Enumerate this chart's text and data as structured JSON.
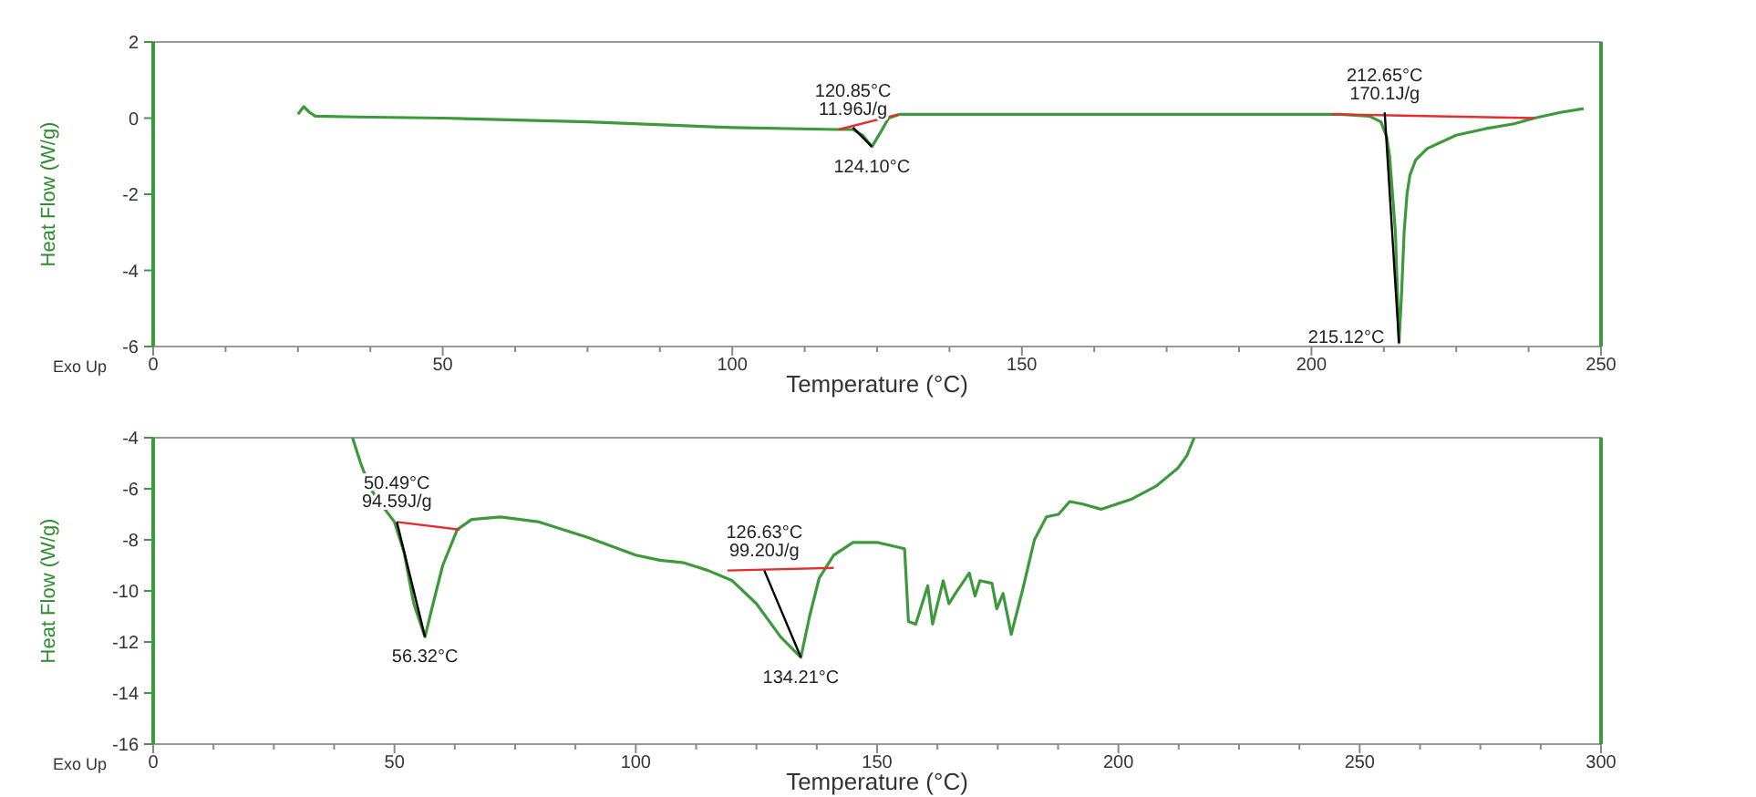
{
  "chart_data": [
    {
      "type": "line",
      "xlabel": "Temperature (°C)",
      "ylabel": "Heat Flow (W/g)",
      "xlim": [
        0,
        250
      ],
      "ylim": [
        -6,
        2
      ],
      "xticks": [
        0,
        {
          "value": 12.5,
          "label": null
        },
        {
          "value": 25,
          "label": null
        },
        {
          "value": 37.5,
          "label": null
        },
        50,
        {
          "value": 62.5,
          "label": null
        },
        {
          "value": 75,
          "label": null
        },
        {
          "value": 87.5,
          "label": null
        },
        100,
        {
          "value": 112.5,
          "label": null
        },
        {
          "value": 125,
          "label": null
        },
        {
          "value": 137.5,
          "label": null
        },
        150,
        {
          "value": 162.5,
          "label": null
        },
        {
          "value": 175,
          "label": null
        },
        {
          "value": 187.5,
          "label": null
        },
        200,
        {
          "value": 212.5,
          "label": null
        },
        {
          "value": 225,
          "label": null
        },
        {
          "value": 237.5,
          "label": null
        },
        250
      ],
      "yticks": [
        -6,
        -4,
        -2,
        0,
        2
      ],
      "grid": false,
      "marker": "none",
      "line_style": "solid",
      "series": [
        {
          "color": "#3c9a3c",
          "x": [
            25,
            26,
            27,
            28,
            35,
            50,
            75,
            100,
            118,
            120.85,
            122.5,
            124.1,
            125.5,
            127,
            129,
            140,
            170,
            205,
            210,
            212,
            213,
            213.5,
            214,
            214.5,
            215.12,
            215.6,
            216,
            216.5,
            217,
            218,
            220,
            225,
            230,
            235,
            238.5,
            243,
            247
          ],
          "values": [
            0.1,
            0.3,
            0.15,
            0.05,
            0.03,
            0,
            -0.1,
            -0.25,
            -0.3,
            -0.3,
            -0.45,
            -0.75,
            -0.4,
            0.0,
            0.1,
            0.1,
            0.1,
            0.1,
            0.05,
            -0.1,
            -0.5,
            -1.0,
            -2.0,
            -3.0,
            -5.9,
            -4.5,
            -3.0,
            -2.0,
            -1.5,
            -1.1,
            -0.8,
            -0.45,
            -0.28,
            -0.15,
            0.0,
            0.15,
            0.25
          ]
        },
        {
          "color": "#e03030",
          "x": [
            118.4,
            128.7
          ],
          "values": [
            -0.3,
            0.1
          ]
        },
        {
          "color": "#000000",
          "x": [
            120.85,
            124.1
          ],
          "values": [
            -0.25,
            -0.75
          ]
        },
        {
          "color": "#e03030",
          "x": [
            203.5,
            238.5
          ],
          "values": [
            0.1,
            0.0
          ]
        },
        {
          "color": "#000000",
          "x": [
            212.65,
            215.12
          ],
          "values": [
            0.15,
            -5.9
          ]
        }
      ],
      "annotations": [
        {
          "text": "120.85°C\n11.96J/g",
          "x": 120.85,
          "y": -0.3
        },
        {
          "text": "124.10°C",
          "x": 124.1,
          "y": -0.75
        },
        {
          "text": "212.65°C\n170.1J/g",
          "x": 212.65,
          "y": 0.1
        },
        {
          "text": "215.12°C",
          "x": 215.12,
          "y": -5.9
        },
        "Exo Up"
      ]
    },
    {
      "type": "line",
      "xlabel": "Temperature (°C)",
      "ylabel": "Heat Flow (W/g)",
      "xlim": [
        0,
        300
      ],
      "ylim": [
        -16,
        -4
      ],
      "xticks": [
        0,
        {
          "value": 12.5,
          "label": null
        },
        {
          "value": 25,
          "label": null
        },
        {
          "value": 37.5,
          "label": null
        },
        50,
        {
          "value": 62.5,
          "label": null
        },
        {
          "value": 75,
          "label": null
        },
        {
          "value": 87.5,
          "label": null
        },
        100,
        {
          "value": 112.5,
          "label": null
        },
        {
          "value": 125,
          "label": null
        },
        {
          "value": 137.5,
          "label": null
        },
        150,
        {
          "value": 162.5,
          "label": null
        },
        {
          "value": 175,
          "label": null
        },
        {
          "value": 187.5,
          "label": null
        },
        200,
        {
          "value": 212.5,
          "label": null
        },
        {
          "value": 225,
          "label": null
        },
        {
          "value": 237.5,
          "label": null
        },
        250,
        {
          "value": 262.5,
          "label": null
        },
        {
          "value": 275,
          "label": null
        },
        {
          "value": 287.5,
          "label": null
        },
        300
      ],
      "yticks": [
        -16,
        -14,
        -12,
        -10,
        -8,
        -6,
        -4
      ],
      "grid": false,
      "marker": "none",
      "line_style": "solid",
      "series": [
        {
          "color": "#3c9a3c",
          "x": [
            41.3,
            43,
            45,
            48,
            50,
            52,
            54,
            56.32,
            58,
            60,
            63,
            66,
            72,
            80,
            90,
            100,
            105,
            110,
            115,
            120,
            125,
            130,
            134.21,
            136,
            138,
            141,
            145,
            150,
            155.7,
            156.5,
            158,
            160.5,
            161.5,
            163.7,
            164.9,
            166.2,
            169.1,
            170.3,
            171.3,
            173.8,
            174.8,
            176.1,
            177.8,
            180.1,
            182.6,
            185.1,
            187.6,
            189.9,
            192.6,
            196.4,
            202.8,
            207.8,
            212.3,
            214.2,
            215.7
          ],
          "values": [
            -4,
            -5,
            -6,
            -6.8,
            -7.3,
            -8.5,
            -10.5,
            -11.8,
            -10.5,
            -9,
            -7.6,
            -7.2,
            -7.1,
            -7.3,
            -7.9,
            -8.6,
            -8.8,
            -8.9,
            -9.2,
            -9.6,
            -10.5,
            -11.8,
            -12.6,
            -11,
            -9.5,
            -8.6,
            -8.1,
            -8.1,
            -8.35,
            -11.2,
            -11.3,
            -9.8,
            -11.3,
            -9.6,
            -10.5,
            -10.1,
            -9.3,
            -10.2,
            -9.6,
            -9.7,
            -10.7,
            -10.1,
            -11.7,
            -10,
            -8,
            -7.1,
            -7,
            -6.5,
            -6.6,
            -6.8,
            -6.4,
            -5.9,
            -5.2,
            -4.7,
            -4
          ]
        },
        {
          "color": "#e03030",
          "x": [
            50.49,
            63.5
          ],
          "values": [
            -7.3,
            -7.6
          ]
        },
        {
          "color": "#000000",
          "x": [
            50.49,
            56.32
          ],
          "values": [
            -7.3,
            -11.8
          ]
        },
        {
          "color": "#e03030",
          "x": [
            119,
            141
          ],
          "values": [
            -9.2,
            -9.1
          ]
        },
        {
          "color": "#000000",
          "x": [
            126.63,
            134.21
          ],
          "values": [
            -9.2,
            -12.6
          ]
        }
      ],
      "annotations": [
        {
          "text": "50.49°C\n94.59J/g",
          "x": 50.49,
          "y": -7.3
        },
        {
          "text": "56.32°C",
          "x": 56.32,
          "y": -11.8
        },
        {
          "text": "126.63°C\n99.20J/g",
          "x": 126.63,
          "y": -9.2
        },
        {
          "text": "134.21°C",
          "x": 134.21,
          "y": -12.6
        },
        "Exo Up"
      ]
    }
  ]
}
